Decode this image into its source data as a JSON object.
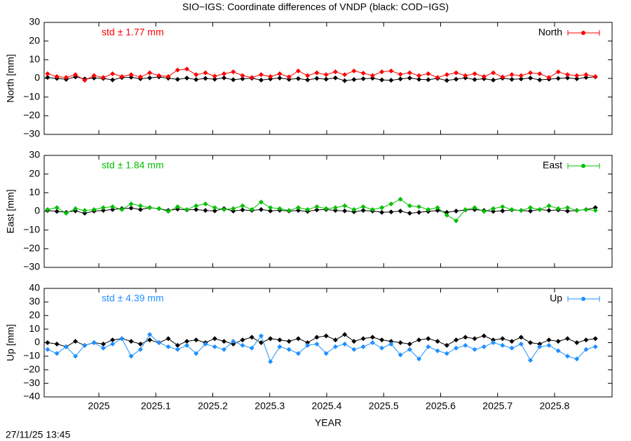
{
  "title": "SIO−IGS: Coordinate differences of VNDP (black: COD−IGS)",
  "timestamp": "27/11/25 13:45",
  "chart_data": [
    {
      "type": "line",
      "ylabel": "North [mm]",
      "annotation": "std ± 1.77 mm",
      "legend": "upper right",
      "xlim": [
        2024.904,
        2025.901
      ],
      "xticks": [
        2025,
        2025.1,
        2025.2,
        2025.3,
        2025.4,
        2025.5,
        2025.6,
        2025.7,
        2025.8
      ],
      "show_xtick_labels": false,
      "ylim": [
        -30,
        30
      ],
      "yticks": [
        {
          "value": -30,
          "label": "−30"
        },
        {
          "value": -20,
          "label": "−20"
        },
        {
          "value": -10,
          "label": "−10"
        },
        0,
        10,
        20,
        30
      ],
      "x": [
        2024.91,
        2024.9263,
        2024.9426,
        2024.9589,
        2024.9752,
        2024.9915,
        2025.0078,
        2025.0241,
        2025.0404,
        2025.0567,
        2025.073,
        2025.0893,
        2025.1056,
        2025.1219,
        2025.1382,
        2025.1545,
        2025.1708,
        2025.1871,
        2025.2034,
        2025.2197,
        2025.236,
        2025.2523,
        2025.2686,
        2025.2849,
        2025.3012,
        2025.3175,
        2025.3338,
        2025.3501,
        2025.3664,
        2025.3827,
        2025.399,
        2025.4153,
        2025.4316,
        2025.4479,
        2025.4642,
        2025.4805,
        2025.4968,
        2025.5131,
        2025.5294,
        2025.5457,
        2025.562,
        2025.5783,
        2025.5946,
        2025.6109,
        2025.6272,
        2025.6435,
        2025.6598,
        2025.6761,
        2025.6924,
        2025.7087,
        2025.725,
        2025.7413,
        2025.7576,
        2025.7739,
        2025.7902,
        2025.8065,
        2025.8228,
        2025.8391,
        2025.8554,
        2025.8717
      ],
      "series": [
        {
          "color": "#000000",
          "values": [
            0.5,
            0,
            -0.5,
            0.8,
            -0.3,
            0.2,
            0,
            -0.8,
            0.4,
            0.6,
            -0.2,
            0.3,
            0.8,
            0.1,
            -0.5,
            0.2,
            -0.6,
            0,
            -0.4,
            0.3,
            -0.7,
            -0.2,
            0.1,
            -0.9,
            -0.3,
            0.2,
            -0.5,
            -0.1,
            -0.8,
            0,
            -0.4,
            0.3,
            -1.2,
            -0.6,
            -0.2,
            0.1,
            -0.8,
            -1,
            -0.3,
            0.2,
            -0.5,
            -0.7,
            0,
            -1.1,
            -0.4,
            0.3,
            -0.6,
            -0.2,
            -0.9,
            0.1,
            -0.5,
            -0.3,
            0.2,
            -0.8,
            -0.4,
            0,
            0.3,
            -0.2,
            0.5,
            0.8
          ]
        },
        {
          "name": "North",
          "color": "#ff0000",
          "values": [
            2.5,
            1,
            0.5,
            2,
            -1,
            1.5,
            0.5,
            2.5,
            1,
            2,
            0.8,
            3,
            1.5,
            1,
            4.5,
            5,
            2,
            3,
            1.2,
            2.5,
            3.5,
            1.5,
            0.5,
            2,
            1,
            2.5,
            0.8,
            4,
            1.5,
            3,
            2,
            3.5,
            2,
            4,
            2.8,
            1.5,
            3.5,
            4,
            2.2,
            3,
            1.5,
            2.5,
            0.5,
            2,
            3,
            1.5,
            2.5,
            1,
            3,
            0.8,
            2,
            1.5,
            3,
            2.5,
            0.5,
            3.5,
            2,
            1.5,
            2,
            1
          ]
        }
      ]
    },
    {
      "type": "line",
      "ylabel": "East [mm]",
      "annotation": "std ± 1.84 mm",
      "legend": "upper right",
      "xlim": [
        2024.904,
        2025.901
      ],
      "xticks": [
        2025,
        2025.1,
        2025.2,
        2025.3,
        2025.4,
        2025.5,
        2025.6,
        2025.7,
        2025.8
      ],
      "show_xtick_labels": false,
      "ylim": [
        -30,
        30
      ],
      "yticks": [
        {
          "value": -30,
          "label": "−30"
        },
        {
          "value": -20,
          "label": "−20"
        },
        {
          "value": -10,
          "label": "−10"
        },
        0,
        10,
        20,
        30
      ],
      "x": [
        2024.91,
        2024.9263,
        2024.9426,
        2024.9589,
        2024.9752,
        2024.9915,
        2025.0078,
        2025.0241,
        2025.0404,
        2025.0567,
        2025.073,
        2025.0893,
        2025.1056,
        2025.1219,
        2025.1382,
        2025.1545,
        2025.1708,
        2025.1871,
        2025.2034,
        2025.2197,
        2025.236,
        2025.2523,
        2025.2686,
        2025.2849,
        2025.3012,
        2025.3175,
        2025.3338,
        2025.3501,
        2025.3664,
        2025.3827,
        2025.399,
        2025.4153,
        2025.4316,
        2025.4479,
        2025.4642,
        2025.4805,
        2025.4968,
        2025.5131,
        2025.5294,
        2025.5457,
        2025.562,
        2025.5783,
        2025.5946,
        2025.6109,
        2025.6272,
        2025.6435,
        2025.6598,
        2025.6761,
        2025.6924,
        2025.7087,
        2025.725,
        2025.7413,
        2025.7576,
        2025.7739,
        2025.7902,
        2025.8065,
        2025.8228,
        2025.8391,
        2025.8554,
        2025.8717
      ],
      "series": [
        {
          "color": "#000000",
          "values": [
            0.5,
            0,
            -0.5,
            0.3,
            -1,
            0.2,
            0.5,
            1,
            1.5,
            1.8,
            1,
            2,
            1.5,
            0.5,
            1.2,
            0.8,
            1,
            0.5,
            0.3,
            1.5,
            0.2,
            0.8,
            0.5,
            1,
            0.3,
            0.6,
            0.2,
            0.5,
            0,
            0.8,
            1,
            0.5,
            0.3,
            -0.2,
            0.5,
            0.2,
            -0.5,
            -0.3,
            0.2,
            -1,
            -0.5,
            0,
            0.5,
            -0.5,
            0.2,
            0.8,
            1,
            0.5,
            0,
            0.3,
            0.8,
            0.5,
            0.2,
            1,
            0.5,
            0.8,
            0.2,
            0.5,
            1,
            2
          ]
        },
        {
          "name": "East",
          "color": "#00c000",
          "values": [
            1,
            2,
            -1,
            1.5,
            0.5,
            1,
            2,
            2.5,
            1,
            4,
            3,
            2,
            1.5,
            0,
            2.5,
            1,
            3,
            4,
            2,
            1,
            1.5,
            3,
            1,
            5,
            2,
            1.5,
            0.5,
            2,
            1,
            2.5,
            1.5,
            2,
            3,
            1,
            2.5,
            1,
            2,
            4,
            6.5,
            3,
            2.5,
            1,
            2,
            -2,
            -5,
            1,
            2,
            0,
            1.5,
            2.5,
            1,
            0.5,
            2,
            1,
            3,
            1.5,
            2,
            0.5,
            1,
            0.5
          ]
        }
      ]
    },
    {
      "type": "line",
      "ylabel": "Up [mm]",
      "annotation": "std ± 4.39 mm",
      "legend": "upper right",
      "xlabel": "YEAR",
      "xlim": [
        2024.904,
        2025.901
      ],
      "xticks": [
        2025,
        2025.1,
        2025.2,
        2025.3,
        2025.4,
        2025.5,
        2025.6,
        2025.7,
        2025.8
      ],
      "show_xtick_labels": true,
      "ylim": [
        -40,
        40
      ],
      "yticks": [
        {
          "value": -40,
          "label": "−40"
        },
        {
          "value": -30,
          "label": "−30"
        },
        {
          "value": -20,
          "label": "−20"
        },
        {
          "value": -10,
          "label": "−10"
        },
        0,
        10,
        20,
        30,
        40
      ],
      "x": [
        2024.91,
        2024.9263,
        2024.9426,
        2024.9589,
        2024.9752,
        2024.9915,
        2025.0078,
        2025.0241,
        2025.0404,
        2025.0567,
        2025.073,
        2025.0893,
        2025.1056,
        2025.1219,
        2025.1382,
        2025.1545,
        2025.1708,
        2025.1871,
        2025.2034,
        2025.2197,
        2025.236,
        2025.2523,
        2025.2686,
        2025.2849,
        2025.3012,
        2025.3175,
        2025.3338,
        2025.3501,
        2025.3664,
        2025.3827,
        2025.399,
        2025.4153,
        2025.4316,
        2025.4479,
        2025.4642,
        2025.4805,
        2025.4968,
        2025.5131,
        2025.5294,
        2025.5457,
        2025.562,
        2025.5783,
        2025.5946,
        2025.6109,
        2025.6272,
        2025.6435,
        2025.6598,
        2025.6761,
        2025.6924,
        2025.7087,
        2025.725,
        2025.7413,
        2025.7576,
        2025.7739,
        2025.7902,
        2025.8065,
        2025.8228,
        2025.8391,
        2025.8554,
        2025.8717
      ],
      "series": [
        {
          "color": "#000000",
          "values": [
            0,
            -1,
            -3,
            1,
            -2,
            0,
            -1,
            2,
            3,
            1,
            -1,
            2,
            0,
            3,
            -2,
            1,
            2,
            0,
            3,
            1,
            -1,
            2,
            4,
            0,
            3,
            2,
            1,
            3,
            0,
            4,
            5,
            2,
            6,
            1,
            3,
            4,
            2,
            1,
            0,
            -1,
            2,
            3,
            1,
            -2,
            2,
            4,
            3,
            5,
            2,
            3,
            1,
            4,
            0,
            -1,
            2,
            1,
            3,
            0,
            2,
            3
          ]
        },
        {
          "name": "Up",
          "color": "#1e90ff",
          "values": [
            -5,
            -8,
            -3,
            -10,
            -2,
            0,
            -4,
            -1,
            3,
            -10,
            -5,
            6,
            0,
            -3,
            -5,
            -2,
            -8,
            -1,
            -3,
            -5,
            1,
            -2,
            -4,
            5,
            -14,
            -3,
            -5,
            -8,
            -2,
            -1,
            -8,
            -3,
            -1,
            -5,
            -3,
            0,
            -4,
            -1,
            -9,
            -5,
            -12,
            -3,
            -6,
            -8,
            -4,
            -2,
            -5,
            -3,
            0,
            -2,
            -4,
            -1,
            -13,
            -3,
            -2,
            -6,
            -10,
            -12,
            -5,
            -3
          ]
        }
      ]
    }
  ]
}
